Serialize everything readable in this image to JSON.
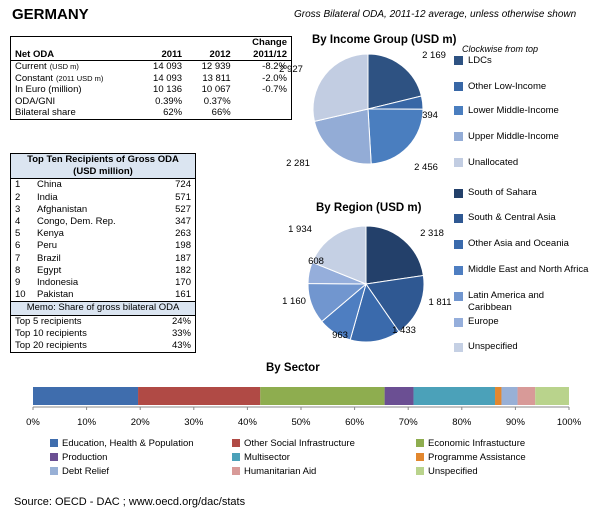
{
  "title": "GERMANY",
  "subtitle": "Gross Bilateral ODA, 2011-12 average, unless otherwise shown",
  "oda_table": {
    "change_label_1": "Change",
    "change_label_2": "2011/12",
    "header": [
      "Net ODA",
      "2011",
      "2012"
    ],
    "rows": [
      {
        "label": "Current",
        "small": "(USD m)",
        "v2011": "14 093",
        "v2012": "12 939",
        "change": "-8.2%"
      },
      {
        "label": "Constant",
        "small": "(2011 USD m)",
        "v2011": "14 093",
        "v2012": "13 811",
        "change": "-2.0%"
      },
      {
        "label": "In Euro (million)",
        "small": "",
        "v2011": "10 136",
        "v2012": "10 067",
        "change": "-0.7%"
      },
      {
        "label": "ODA/GNI",
        "small": "",
        "v2011": "0.39%",
        "v2012": "0.37%",
        "change": ""
      },
      {
        "label": "Bilateral share",
        "small": "",
        "v2011": "62%",
        "v2012": "66%",
        "change": ""
      }
    ]
  },
  "top_recipients": {
    "title": "Top Ten Recipients of Gross ODA",
    "unit": "(USD million)",
    "rows": [
      {
        "rank": "1",
        "name": "China",
        "value": "724"
      },
      {
        "rank": "2",
        "name": "India",
        "value": "571"
      },
      {
        "rank": "3",
        "name": "Afghanistan",
        "value": "527"
      },
      {
        "rank": "4",
        "name": "Congo, Dem. Rep.",
        "value": "347"
      },
      {
        "rank": "5",
        "name": "Kenya",
        "value": "263"
      },
      {
        "rank": "6",
        "name": "Peru",
        "value": "198"
      },
      {
        "rank": "7",
        "name": "Brazil",
        "value": "187"
      },
      {
        "rank": "8",
        "name": "Egypt",
        "value": "182"
      },
      {
        "rank": "9",
        "name": "Indonesia",
        "value": "170"
      },
      {
        "rank": "10",
        "name": "Pakistan",
        "value": "161"
      }
    ],
    "memo_title": "Memo:  Share of gross bilateral ODA",
    "memo_rows": [
      {
        "label": "Top 5 recipients",
        "value": "24%"
      },
      {
        "label": "Top 10 recipients",
        "value": "33%"
      },
      {
        "label": "Top 20 recipients",
        "value": "43%"
      }
    ]
  },
  "clockwise_note": "Clockwise from top",
  "source": "Source:  OECD - DAC ; www.oecd.org/dac/stats",
  "chart_data": [
    {
      "type": "pie",
      "title": "By Income Group (USD m)",
      "labels": [
        "LDCs",
        "Other Low-Income",
        "Lower Middle-Income",
        "Upper Middle-Income",
        "Unallocated"
      ],
      "values": [
        2169,
        394,
        2456,
        2281,
        2927
      ],
      "value_labels": [
        "2 169",
        "394",
        "2 456",
        "2 281",
        "2 927"
      ],
      "colors": [
        "#2e5282",
        "#3867a6",
        "#4a7ebf",
        "#93acd6",
        "#c2cde2"
      ]
    },
    {
      "type": "pie",
      "title": "By Region (USD m)",
      "labels": [
        "South of Sahara",
        "South & Central Asia",
        "Other Asia and Oceania",
        "Middle East and North Africa",
        "Latin America and Caribbean",
        "Europe",
        "Unspecified"
      ],
      "values": [
        2318,
        1811,
        1433,
        963,
        1160,
        608,
        1934
      ],
      "value_labels": [
        "2 318",
        "1 811",
        "1 433",
        "963",
        "1 160",
        "608",
        "1 934"
      ],
      "colors": [
        "#23406a",
        "#2f5892",
        "#3a6aac",
        "#4e7ec1",
        "#7196cf",
        "#95aedb",
        "#c5d0e4"
      ]
    },
    {
      "type": "bar",
      "orientation": "horizontal-stacked",
      "title": "By Sector",
      "categories": [
        "Education, Health & Population",
        "Other Social Infrastructure",
        "Economic Infrastucture",
        "Production",
        "Multisector",
        "Programme Assistance",
        "Debt Relief",
        "Humanitarian Aid",
        "Unspecified"
      ],
      "values_percent": [
        19.6,
        22.8,
        23.2,
        5.4,
        15.2,
        1.2,
        3.0,
        3.3,
        6.3
      ],
      "colors": [
        "#3f6dad",
        "#b04a45",
        "#8ead4f",
        "#6b4f93",
        "#4ba1b9",
        "#e2872e",
        "#98b0d6",
        "#d89a98",
        "#b9d38c"
      ],
      "xlim": [
        0,
        100
      ],
      "ticks": [
        "0%",
        "10%",
        "20%",
        "30%",
        "40%",
        "50%",
        "60%",
        "70%",
        "80%",
        "90%",
        "100%"
      ]
    }
  ]
}
